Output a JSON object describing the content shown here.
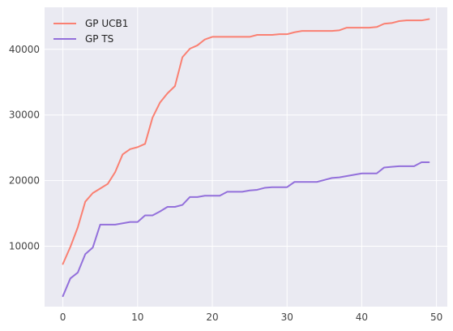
{
  "chart_data": {
    "type": "line",
    "title": "",
    "xlabel": "",
    "ylabel": "",
    "xlim": [
      -2.45,
      51.45
    ],
    "ylim": [
      800,
      46400
    ],
    "xticks": [
      0,
      10,
      20,
      30,
      40,
      50
    ],
    "yticks": [
      10000,
      20000,
      30000,
      40000
    ],
    "grid": true,
    "legend_position": "top-left",
    "background": "#eaeaf2",
    "series": [
      {
        "name": "GP UCB1",
        "color": "#fa8072",
        "x": [
          0,
          1,
          2,
          3,
          4,
          5,
          6,
          7,
          8,
          9,
          10,
          11,
          12,
          13,
          14,
          15,
          16,
          17,
          18,
          19,
          20,
          21,
          22,
          23,
          24,
          25,
          26,
          27,
          28,
          29,
          30,
          31,
          32,
          33,
          34,
          35,
          36,
          37,
          38,
          39,
          40,
          41,
          42,
          43,
          44,
          45,
          46,
          47,
          48,
          49
        ],
        "y": [
          7300,
          9900,
          12900,
          16800,
          18100,
          18800,
          19500,
          21300,
          24000,
          24800,
          25100,
          25600,
          29600,
          31900,
          33300,
          34400,
          38800,
          40100,
          40600,
          41500,
          41900,
          41900,
          41900,
          41900,
          41900,
          41900,
          42200,
          42200,
          42200,
          42300,
          42300,
          42600,
          42800,
          42800,
          42800,
          42800,
          42800,
          42900,
          43300,
          43300,
          43300,
          43300,
          43400,
          43900,
          44000,
          44300,
          44400,
          44400,
          44400,
          44600
        ]
      },
      {
        "name": "GP TS",
        "color": "#9370db",
        "x": [
          0,
          1,
          2,
          3,
          4,
          5,
          6,
          7,
          8,
          9,
          10,
          11,
          12,
          13,
          14,
          15,
          16,
          17,
          18,
          19,
          20,
          21,
          22,
          23,
          24,
          25,
          26,
          27,
          28,
          29,
          30,
          31,
          32,
          33,
          34,
          35,
          36,
          37,
          38,
          39,
          40,
          41,
          42,
          43,
          44,
          45,
          46,
          47,
          48,
          49
        ],
        "y": [
          2400,
          5100,
          6000,
          8800,
          9800,
          13300,
          13300,
          13300,
          13500,
          13700,
          13700,
          14700,
          14700,
          15300,
          16000,
          16000,
          16300,
          17500,
          17500,
          17700,
          17700,
          17700,
          18300,
          18300,
          18300,
          18500,
          18600,
          18900,
          19000,
          19000,
          19000,
          19800,
          19800,
          19800,
          19800,
          20100,
          20400,
          20500,
          20700,
          20900,
          21100,
          21100,
          21100,
          22000,
          22100,
          22200,
          22200,
          22200,
          22800,
          22800
        ]
      }
    ]
  }
}
